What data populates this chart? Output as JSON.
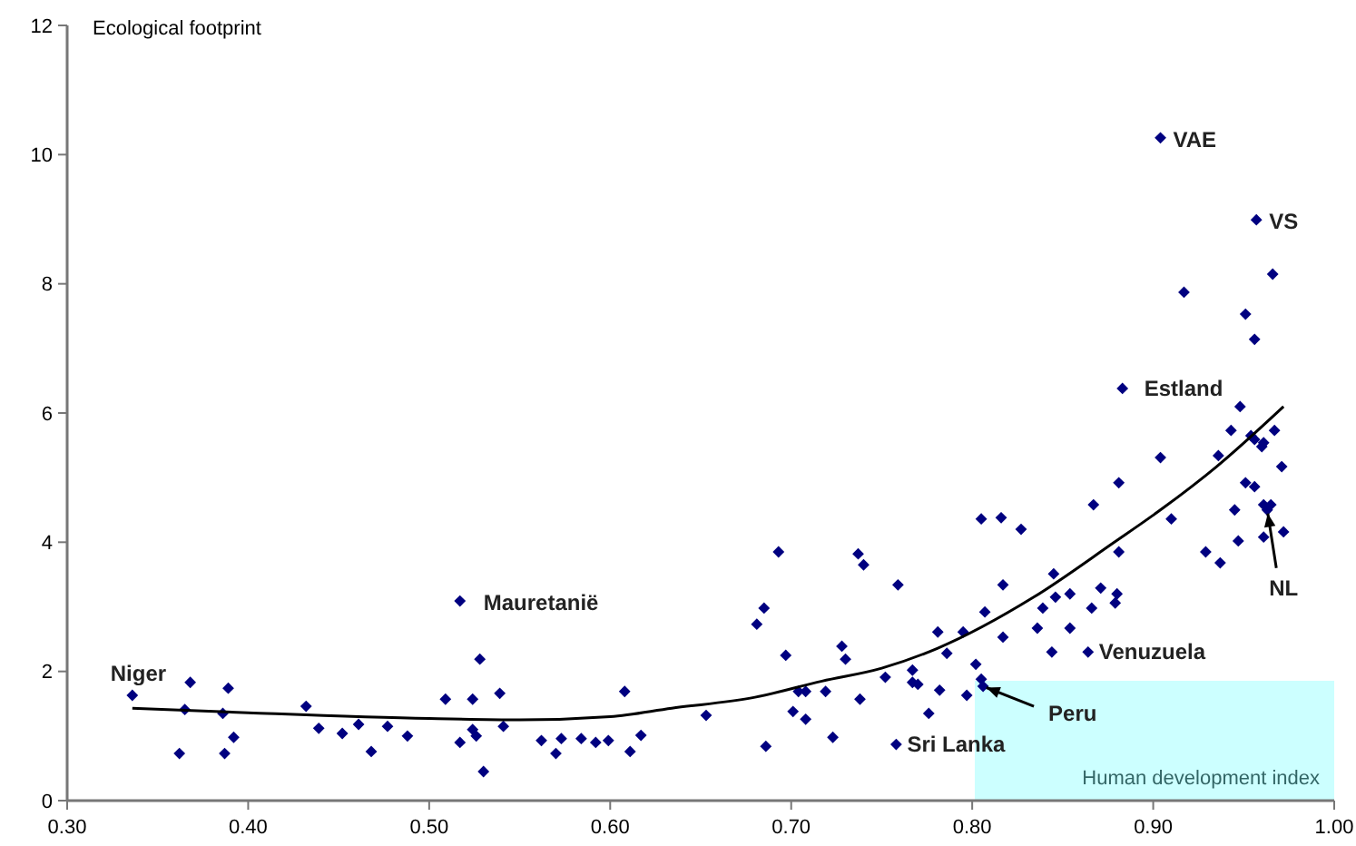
{
  "chart_data": {
    "type": "scatter",
    "ylabel": "Ecological footprint",
    "xlabel": "Human development index",
    "xlim": [
      0.3,
      1.0
    ],
    "ylim": [
      0,
      12
    ],
    "xticks": [
      {
        "value": 0.3,
        "label": "0.30"
      },
      {
        "value": 0.4,
        "label": "0.40"
      },
      {
        "value": 0.5,
        "label": "0.50"
      },
      {
        "value": 0.6,
        "label": "0.60"
      },
      {
        "value": 0.7,
        "label": "0.70"
      },
      {
        "value": 0.8,
        "label": "0.80"
      },
      {
        "value": 0.9,
        "label": "0.90"
      },
      {
        "value": 1.0,
        "label": "1.00"
      }
    ],
    "yticks": [
      0,
      2,
      4,
      6,
      8,
      10,
      12
    ],
    "grid": false,
    "marker": "diamond",
    "series": [
      {
        "color": "#000080",
        "x": [
          0.336,
          0.362,
          0.365,
          0.368,
          0.387,
          0.386,
          0.389,
          0.392,
          0.432,
          0.439,
          0.452,
          0.461,
          0.468,
          0.477,
          0.488,
          0.509,
          0.517,
          0.517,
          0.524,
          0.524,
          0.528,
          0.526,
          0.53,
          0.539,
          0.541,
          0.562,
          0.57,
          0.573,
          0.584,
          0.592,
          0.599,
          0.608,
          0.611,
          0.617,
          0.653,
          0.686,
          0.681,
          0.685,
          0.693,
          0.697,
          0.701,
          0.704,
          0.708,
          0.708,
          0.719,
          0.723,
          0.728,
          0.73,
          0.738,
          0.737,
          0.74,
          0.752,
          0.759,
          0.758,
          0.767,
          0.767,
          0.77,
          0.776,
          0.782,
          0.781,
          0.786,
          0.795,
          0.797,
          0.802,
          0.805,
          0.806,
          0.805,
          0.807,
          0.817,
          0.817,
          0.816,
          0.827,
          0.836,
          0.839,
          0.844,
          0.846,
          0.845,
          0.854,
          0.854,
          0.866,
          0.871,
          0.88,
          0.879,
          0.881,
          0.864,
          0.91,
          0.929,
          0.937,
          0.947,
          0.961,
          0.972,
          0.963,
          0.904,
          0.957,
          0.966,
          0.917,
          0.951,
          0.956,
          0.883,
          0.948,
          0.943,
          0.954,
          0.961,
          0.96,
          0.967,
          0.956,
          0.904,
          0.936,
          0.971,
          0.881,
          0.951,
          0.956,
          0.867,
          0.945,
          0.961,
          0.965
        ],
        "values": [
          1.63,
          0.73,
          1.41,
          1.83,
          0.73,
          1.35,
          1.74,
          0.98,
          1.46,
          1.12,
          1.04,
          1.18,
          0.76,
          1.15,
          1.0,
          1.57,
          3.09,
          0.9,
          1.1,
          1.57,
          2.19,
          1.0,
          0.45,
          1.66,
          1.15,
          0.93,
          0.73,
          0.96,
          0.96,
          0.9,
          0.93,
          1.69,
          0.76,
          1.01,
          1.32,
          0.84,
          2.73,
          2.98,
          3.85,
          2.25,
          1.38,
          1.69,
          1.69,
          1.26,
          1.69,
          0.98,
          2.39,
          2.19,
          1.57,
          3.82,
          3.65,
          1.91,
          3.34,
          0.87,
          2.02,
          1.83,
          1.8,
          1.35,
          1.71,
          2.61,
          2.28,
          2.61,
          1.63,
          2.11,
          1.88,
          1.77,
          4.36,
          2.92,
          3.34,
          2.53,
          4.38,
          4.2,
          2.67,
          2.98,
          2.3,
          3.15,
          3.51,
          3.2,
          2.67,
          2.98,
          3.29,
          3.2,
          3.06,
          3.85,
          2.3,
          4.36,
          3.85,
          3.68,
          4.02,
          4.08,
          4.16,
          4.5,
          10.26,
          8.99,
          8.15,
          7.87,
          7.53,
          7.14,
          6.38,
          6.1,
          5.73,
          5.65,
          5.54,
          5.48,
          5.73,
          5.59,
          5.31,
          5.34,
          5.17,
          4.92,
          4.92,
          4.86,
          4.58,
          4.5,
          4.58,
          4.58
        ]
      },
      {
        "type": "line",
        "color": "#000000",
        "marker": "none",
        "x": [
          0.336,
          0.4,
          0.5,
          0.55,
          0.6,
          0.634,
          0.68,
          0.717,
          0.75,
          0.781,
          0.834,
          0.878,
          0.905,
          0.935,
          0.972
        ],
        "values": [
          1.43,
          1.36,
          1.27,
          1.25,
          1.3,
          1.43,
          1.6,
          1.85,
          2.05,
          2.36,
          3.15,
          3.99,
          4.52,
          5.17,
          6.1
        ]
      }
    ],
    "annotations": [
      {
        "text": "Niger",
        "x": 0.336,
        "y": 1.63
      },
      {
        "text": "Mauretanië",
        "x": 0.517,
        "y": 3.09
      },
      {
        "text": "VAE",
        "x": 0.904,
        "y": 10.26
      },
      {
        "text": "VS",
        "x": 0.957,
        "y": 8.99
      },
      {
        "text": "Estland",
        "x": 0.883,
        "y": 6.38
      },
      {
        "text": "Venuzuela",
        "x": 0.864,
        "y": 2.3
      },
      {
        "text": "Sri Lanka",
        "x": 0.758,
        "y": 0.87
      },
      {
        "text": "Peru",
        "x": 0.806,
        "y": 1.77
      },
      {
        "text": "NL",
        "x": 0.963,
        "y": 4.5
      }
    ]
  }
}
